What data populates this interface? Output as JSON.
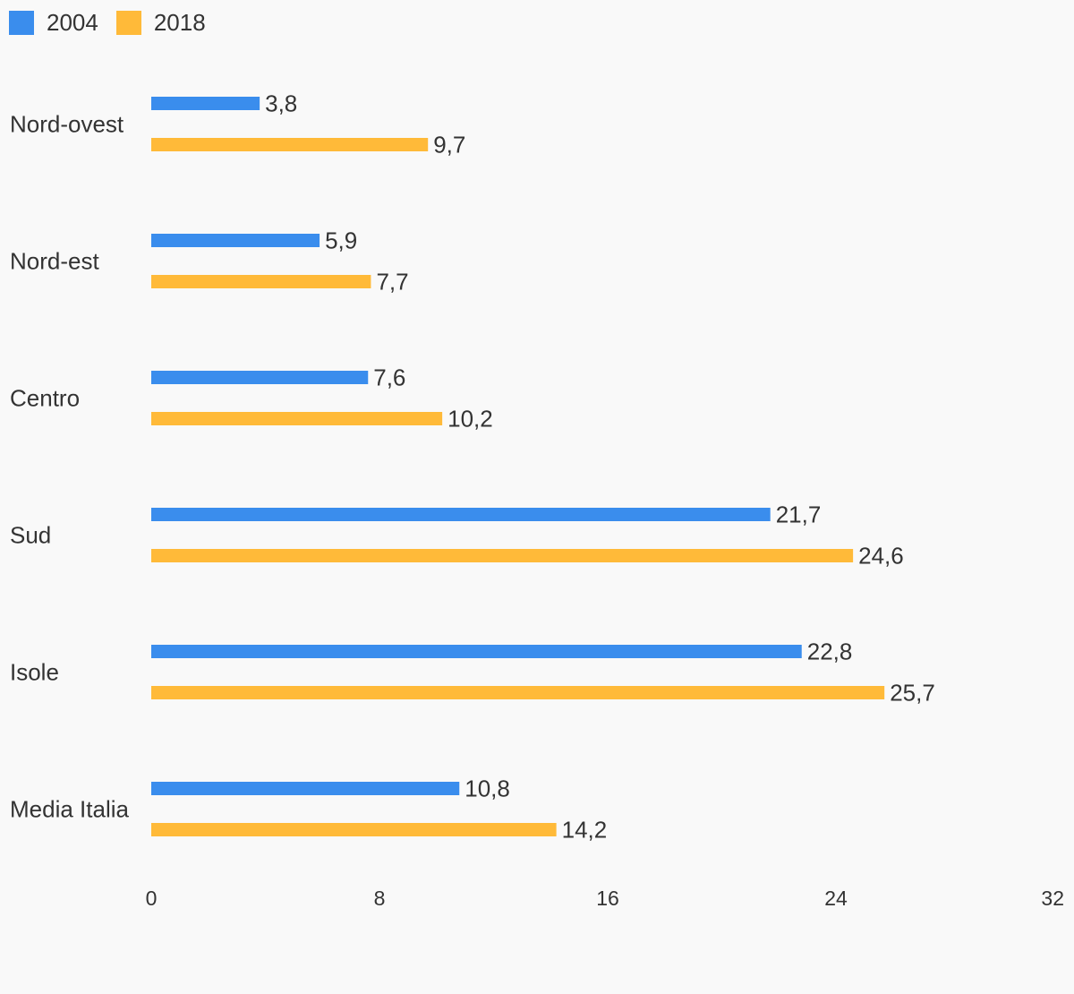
{
  "chart_data": {
    "type": "bar",
    "orientation": "horizontal",
    "categories": [
      "Nord-ovest",
      "Nord-est",
      "Centro",
      "Sud",
      "Isole",
      "Media Italia"
    ],
    "series": [
      {
        "name": "2004",
        "values": [
          3.8,
          5.9,
          7.6,
          21.7,
          22.8,
          10.8
        ],
        "labels": [
          "3,8",
          "5,9",
          "7,6",
          "21,7",
          "22,8",
          "10,8"
        ],
        "color": "#3a8ded"
      },
      {
        "name": "2018",
        "values": [
          9.7,
          7.7,
          10.2,
          24.6,
          25.7,
          14.2
        ],
        "labels": [
          "9,7",
          "7,7",
          "10,2",
          "24,6",
          "25,7",
          "14,2"
        ],
        "color": "#ffba39"
      }
    ],
    "xlim": [
      0,
      32
    ],
    "x_ticks": [
      "0",
      "8",
      "16",
      "24",
      "32"
    ],
    "grid": false,
    "legend_position": "top-left",
    "title": "",
    "xlabel": "",
    "ylabel": ""
  }
}
